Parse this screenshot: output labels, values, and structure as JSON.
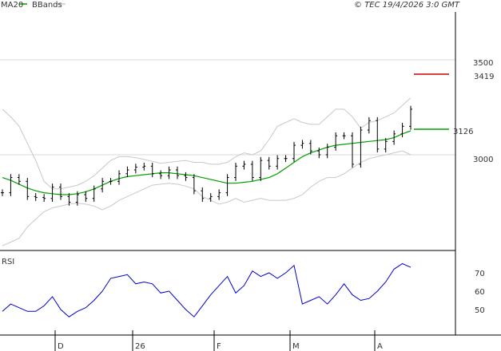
{
  "header": {
    "ma_label": "MA20",
    "bb_label": "BBands",
    "copyright": "© TEC 19/4/2026 3:0 GMT"
  },
  "colors": {
    "ma": "#00a000",
    "bbands": "#c8c8c8",
    "candles": "#000000",
    "rsi": "#0000cc",
    "target": "#cc0000",
    "grid": "#d8d8d8",
    "axis": "#000000"
  },
  "chart_data": [
    {
      "type": "line",
      "title": "",
      "x_ticks": [
        "D",
        "26",
        "F",
        "M",
        "A"
      ],
      "y_ticks": [
        {
          "label": "3500",
          "value": 3500
        },
        {
          "label": "3000",
          "value": 3000
        }
      ],
      "ylim": [
        2500,
        3800
      ],
      "grid": true,
      "markers": [
        {
          "name": "target",
          "label": "3419",
          "value": 3419,
          "color": "#cc0000"
        },
        {
          "name": "ma-current",
          "label": "3126",
          "value": 3126,
          "color": "#00a000"
        }
      ],
      "series": [
        {
          "name": "MA20",
          "style": "line",
          "values": [
            2880,
            2865,
            2845,
            2825,
            2810,
            2800,
            2795,
            2790,
            2790,
            2795,
            2805,
            2820,
            2840,
            2860,
            2875,
            2885,
            2890,
            2895,
            2900,
            2905,
            2905,
            2900,
            2895,
            2890,
            2880,
            2870,
            2860,
            2850,
            2850,
            2855,
            2860,
            2870,
            2880,
            2900,
            2930,
            2960,
            2990,
            3010,
            3025,
            3040,
            3050,
            3055,
            3060,
            3065,
            3070,
            3075,
            3080,
            3090,
            3110,
            3126
          ]
        },
        {
          "name": "BBands upper",
          "style": "band",
          "values": [
            3240,
            3200,
            3150,
            3060,
            2970,
            2860,
            2820,
            2820,
            2830,
            2840,
            2860,
            2890,
            2930,
            2970,
            2990,
            2990,
            2985,
            2975,
            2965,
            2955,
            2960,
            2965,
            2970,
            2960,
            2960,
            2950,
            2950,
            2960,
            2990,
            3010,
            3000,
            3020,
            3080,
            3150,
            3170,
            3190,
            3170,
            3160,
            3160,
            3200,
            3240,
            3240,
            3200,
            3140,
            3170,
            3180,
            3200,
            3220,
            3260,
            3300
          ]
        },
        {
          "name": "BBands lower",
          "style": "band",
          "values": [
            2520,
            2540,
            2560,
            2620,
            2660,
            2700,
            2720,
            2730,
            2740,
            2745,
            2740,
            2730,
            2710,
            2730,
            2760,
            2780,
            2800,
            2820,
            2840,
            2845,
            2850,
            2845,
            2835,
            2820,
            2780,
            2760,
            2740,
            2750,
            2770,
            2750,
            2760,
            2770,
            2760,
            2760,
            2760,
            2770,
            2790,
            2830,
            2860,
            2880,
            2880,
            2900,
            2930,
            2960,
            2980,
            2990,
            3000,
            3010,
            3020,
            3000
          ]
        },
        {
          "name": "Price",
          "style": "ohlc-close",
          "values": [
            2800,
            2880,
            2860,
            2780,
            2775,
            2770,
            2830,
            2780,
            2750,
            2790,
            2770,
            2820,
            2860,
            2860,
            2900,
            2920,
            2935,
            2940,
            2900,
            2890,
            2920,
            2890,
            2880,
            2810,
            2770,
            2780,
            2800,
            2880,
            2940,
            2950,
            2880,
            2970,
            2940,
            2980,
            2980,
            3050,
            3060,
            3020,
            3000,
            3040,
            3100,
            3100,
            2950,
            3130,
            3180,
            3030,
            3070,
            3110,
            3150,
            3240
          ]
        }
      ]
    },
    {
      "type": "line",
      "title": "RSI",
      "y_ticks": [
        {
          "label": "70",
          "value": 70
        },
        {
          "label": "60",
          "value": 60
        },
        {
          "label": "50",
          "value": 50
        }
      ],
      "ylim": [
        41,
        81
      ],
      "series": [
        {
          "name": "RSI",
          "values": [
            49,
            53,
            51,
            49,
            49,
            52,
            57,
            50,
            46,
            49,
            51,
            55,
            60,
            67,
            68,
            69,
            64,
            65,
            64,
            59,
            60,
            55,
            50,
            46,
            52,
            58,
            63,
            68,
            59,
            63,
            71,
            68,
            70,
            67,
            70,
            74,
            53,
            55,
            57,
            53,
            58,
            64,
            58,
            55,
            56,
            60,
            65,
            72,
            75,
            73
          ]
        }
      ]
    }
  ]
}
